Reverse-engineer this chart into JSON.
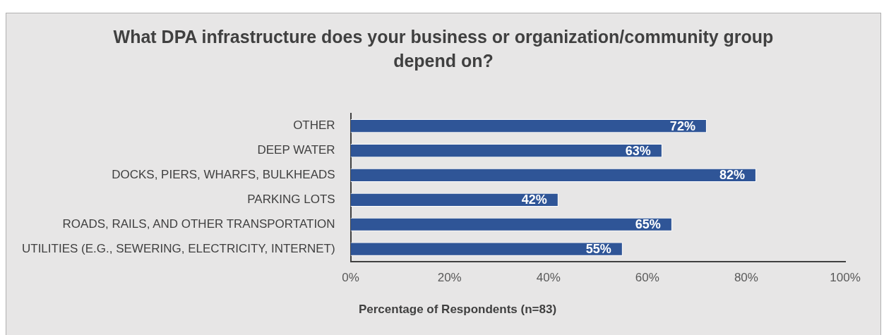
{
  "chart_data": {
    "type": "bar",
    "orientation": "horizontal",
    "title": "What DPA infrastructure does your business or organization/community group depend on?",
    "xlabel": "Percentage of Respondents (n=83)",
    "categories": [
      "OTHER",
      "DEEP WATER",
      "DOCKS, PIERS, WHARFS, BULKHEADS",
      "PARKING LOTS",
      "ROADS, RAILS, AND OTHER TRANSPORTATION",
      "UTILITIES (E.G., SEWERING, ELECTRICITY, INTERNET)"
    ],
    "values": [
      72,
      63,
      82,
      42,
      65,
      55
    ],
    "value_labels": [
      "72%",
      "63%",
      "82%",
      "42%",
      "65%",
      "55%"
    ],
    "color": "#2f5597",
    "xlim": [
      0,
      100
    ],
    "xticks": [
      {
        "value": 0,
        "label": "0%"
      },
      {
        "value": 20,
        "label": "20%"
      },
      {
        "value": 40,
        "label": "40%"
      },
      {
        "value": 60,
        "label": "60%"
      },
      {
        "value": 80,
        "label": "80%"
      },
      {
        "value": 100,
        "label": "100%"
      }
    ],
    "grid": false,
    "legend": false
  }
}
